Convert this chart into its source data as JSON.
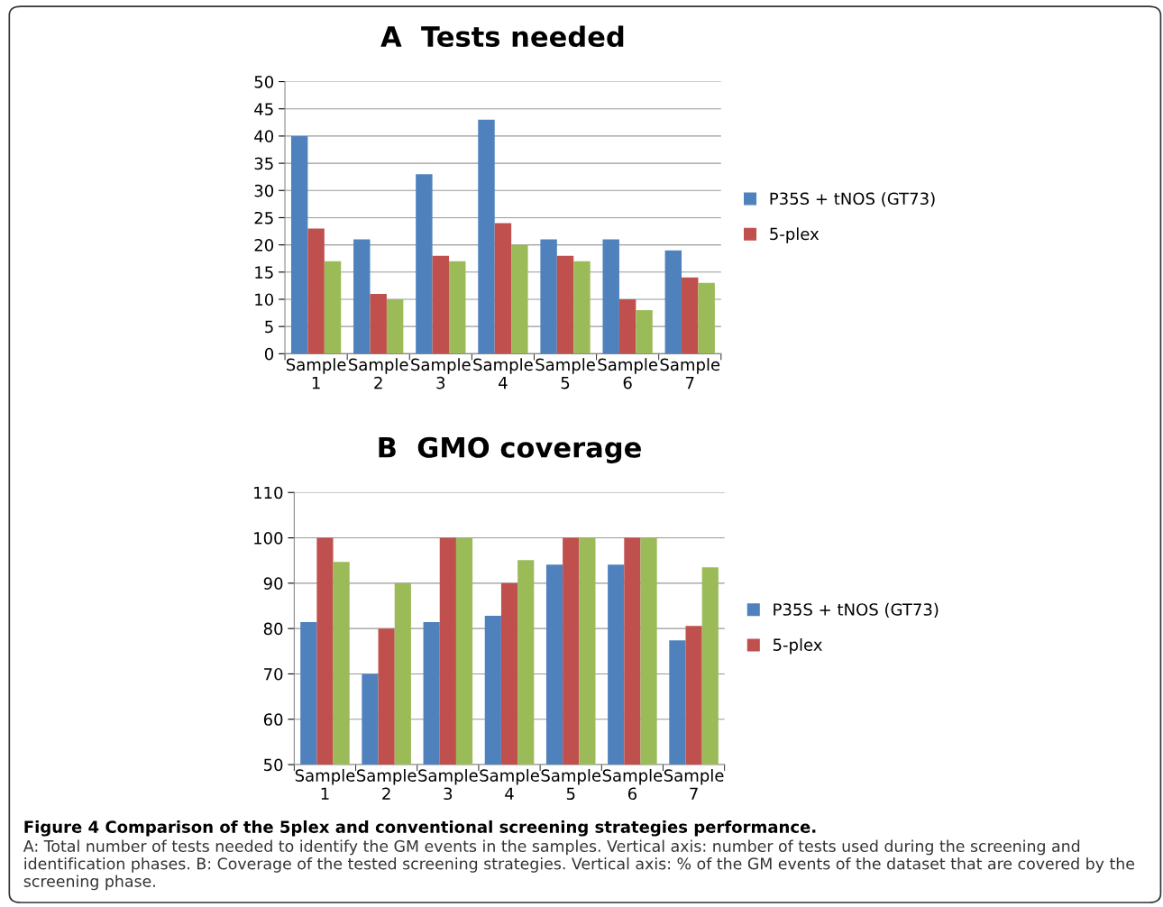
{
  "chart_data": [
    {
      "type": "bar",
      "title": "A  Tests needed",
      "categories": [
        "Sample 1",
        "Sample 2",
        "Sample 3",
        "Sample 4",
        "Sample 5",
        "Sample 6",
        "Sample 7"
      ],
      "series": [
        {
          "name": "P35S + tNOS (GT73)",
          "color": "#4f81bd",
          "values": [
            40,
            21,
            33,
            43,
            21,
            21,
            19
          ]
        },
        {
          "name": "5-plex",
          "color": "#c0504d",
          "values": [
            23,
            11,
            18,
            24,
            18,
            10,
            14
          ]
        },
        {
          "color": "#9bbb59",
          "values": [
            17,
            10,
            17,
            20,
            17,
            8,
            13
          ]
        }
      ],
      "ylim": [
        0,
        50
      ],
      "yticks": [
        0,
        5,
        10,
        15,
        20,
        25,
        30,
        35,
        40,
        45,
        50
      ],
      "grid": "y",
      "legend": "right"
    },
    {
      "type": "bar",
      "title": "B  GMO coverage",
      "categories": [
        "Sample 1",
        "Sample 2",
        "Sample 3",
        "Sample 4",
        "Sample 5",
        "Sample 6",
        "Sample 7"
      ],
      "series": [
        {
          "name": "P35S + tNOS (GT73)",
          "color": "#4f81bd",
          "values": [
            81.4,
            70,
            81.4,
            82.8,
            94.1,
            94.1,
            77.4
          ]
        },
        {
          "name": "5-plex",
          "color": "#c0504d",
          "values": [
            100,
            80,
            100,
            90,
            100,
            100,
            80.6
          ]
        },
        {
          "color": "#9bbb59",
          "values": [
            94.7,
            90,
            100,
            95.1,
            100,
            100,
            93.5
          ]
        }
      ],
      "ylim": [
        50,
        110
      ],
      "yticks": [
        50,
        60,
        70,
        80,
        90,
        100,
        110
      ],
      "grid": "y",
      "legend": "right",
      "annotations": [
        "Figure 4 Comparison of the 5plex and conventional screening strategies performance.",
        "A: Total number of tests needed to identify the GM events in the samples. Vertical axis: number of tests used during the screening and identification phases. B: Coverage of the tested screening strategies. Vertical axis: % of the GM events of the dataset that are covered by the screening phase."
      ]
    }
  ]
}
